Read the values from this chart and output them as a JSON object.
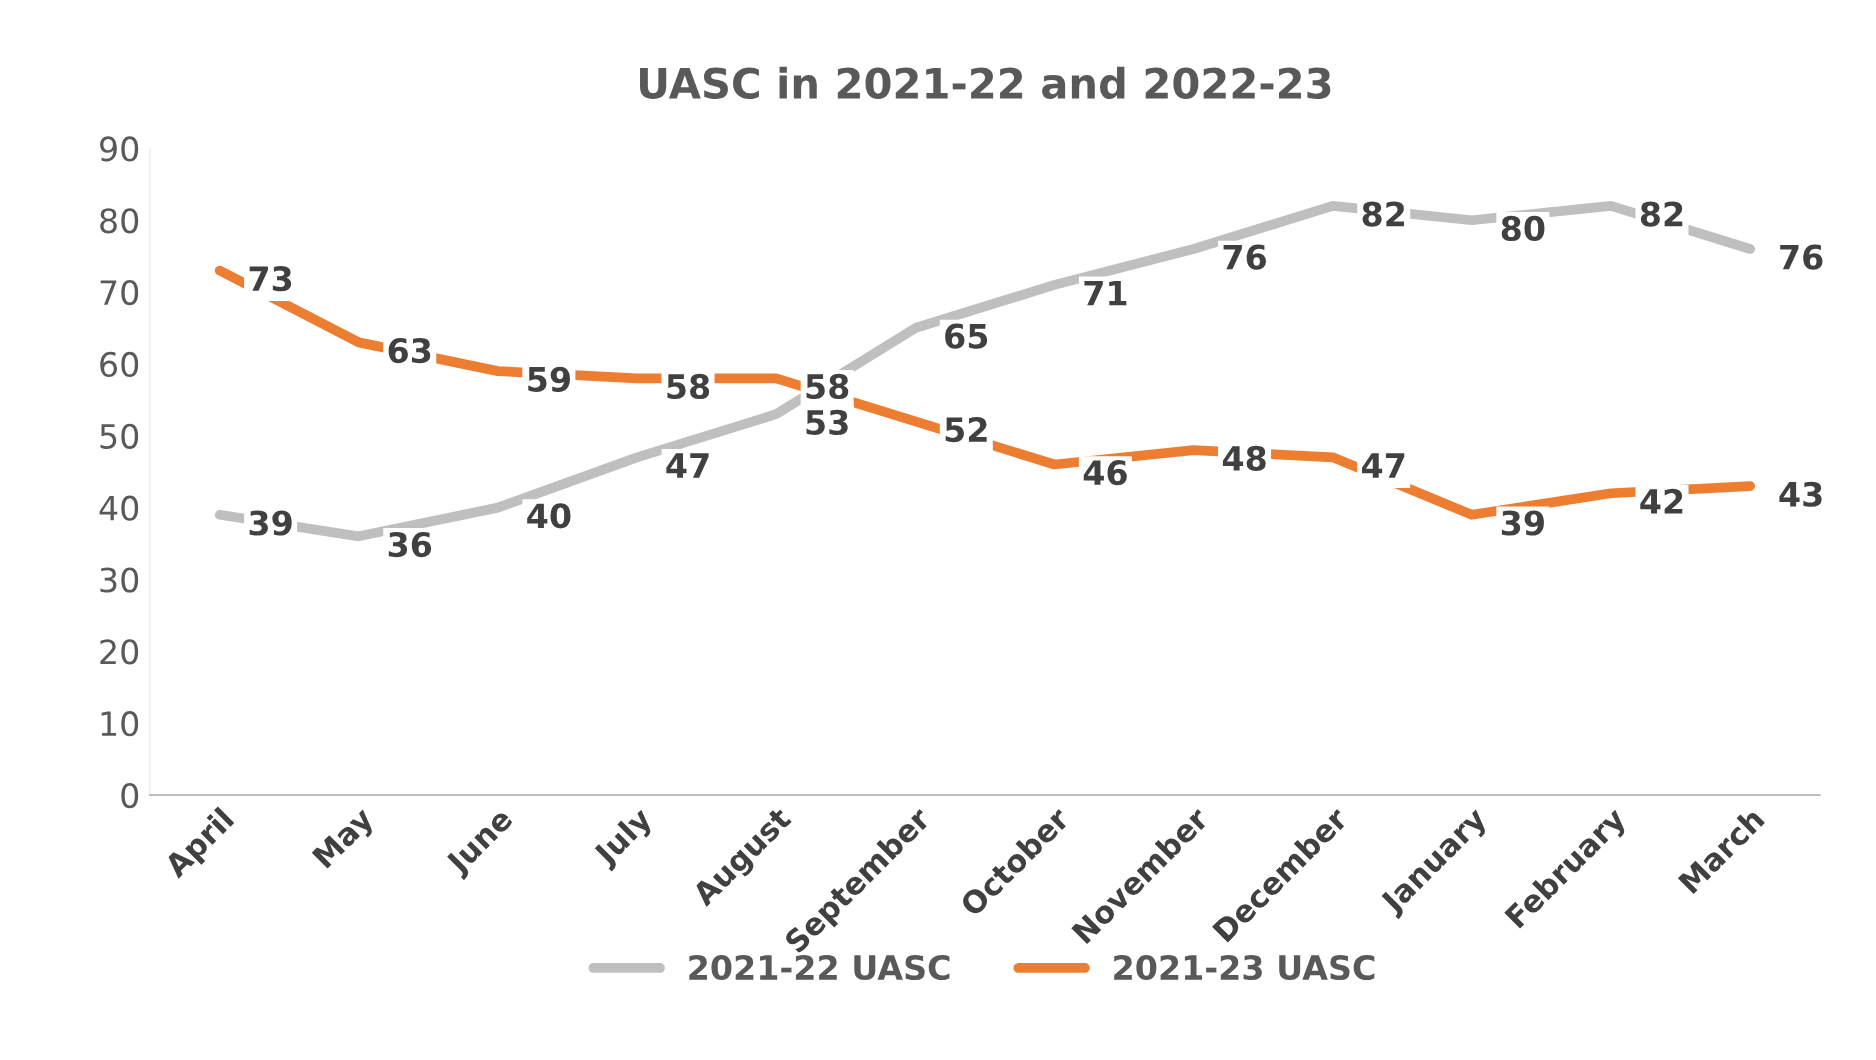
{
  "chart_data": {
    "type": "line",
    "title": "UASC in 2021-22 and 2022-23",
    "categories": [
      "April",
      "May",
      "June",
      "July",
      "August",
      "September",
      "October",
      "November",
      "December",
      "January",
      "February",
      "March"
    ],
    "series": [
      {
        "name": "2021-22 UASC",
        "color": "#bfbfbf",
        "values": [
          39,
          36,
          40,
          47,
          53,
          65,
          71,
          76,
          82,
          80,
          82,
          76
        ]
      },
      {
        "name": "2021-23 UASC",
        "color": "#ed7d31",
        "values": [
          73,
          63,
          59,
          58,
          58,
          52,
          46,
          48,
          47,
          39,
          42,
          43
        ]
      }
    ],
    "ylim": [
      0,
      90
    ],
    "yticks": [
      0,
      10,
      20,
      30,
      40,
      50,
      60,
      70,
      80,
      90
    ],
    "data_labels": true,
    "grid": false,
    "legend": "bottom",
    "marker": "none",
    "line_style": "solid"
  }
}
